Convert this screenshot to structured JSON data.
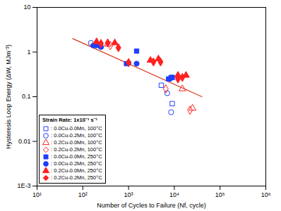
{
  "chart_data": {
    "type": "scatter",
    "x_label": "Number of Cycles to Failure (Nf, cycle)",
    "y_label": "Hysteresis Loop Energy (ΔW, MJm⁻³)",
    "log": true,
    "grid": false,
    "legend": "lower left",
    "legend_title": "Strain Rate: 1x10⁻³ s⁻¹",
    "xlim": [
      10,
      1000000
    ],
    "xticks": [
      {
        "value": 10,
        "label": "10¹"
      },
      {
        "value": 100,
        "label": "10²"
      },
      {
        "value": 1000,
        "label": "10³"
      },
      {
        "value": 10000,
        "label": "10⁴"
      },
      {
        "value": 100000,
        "label": "10⁵"
      },
      {
        "value": 1000000,
        "label": "10⁶"
      }
    ],
    "ylim": [
      0.001,
      10
    ],
    "yticks": [
      {
        "value": 0.001,
        "label": "1E-3"
      },
      0.01,
      0.1,
      1,
      10
    ],
    "series": [
      {
        "name": ": 0.0Cu-0.0Mn, 100°C",
        "color": "#1f3fff",
        "marker": "square-open",
        "x": [
          5200,
          8500,
          9000
        ],
        "values": [
          0.18,
          0.27,
          0.07
        ]
      },
      {
        "name": ": 0.0Cu-0.2Mn, 100°C",
        "color": "#1f3fff",
        "marker": "circle-open",
        "x": [
          150,
          7000,
          8500
        ],
        "values": [
          1.6,
          0.12,
          0.045
        ]
      },
      {
        "name": ": 0.2Cu-0.0Mn, 100°C",
        "color": "#ff2020",
        "marker": "triangle-open",
        "x": [
          350,
          15000,
          25000
        ],
        "values": [
          1.5,
          0.15,
          0.055
        ]
      },
      {
        "name": ": 0.2Cu-0.2Mn, 100°C",
        "color": "#ff2020",
        "marker": "diamond-open",
        "x": [
          400,
          6500,
          22000
        ],
        "values": [
          1.4,
          0.15,
          0.05
        ]
      },
      {
        "name": ": 0.0Cu-0.0Mn, 250°C",
        "color": "#1f3fff",
        "marker": "square-filled",
        "x": [
          200,
          900,
          1500,
          7500,
          9000
        ],
        "values": [
          1.4,
          0.55,
          1.05,
          0.25,
          0.27
        ]
      },
      {
        "name": ": 0.0Cu-0.2Mn, 250°C",
        "color": "#1f3fff",
        "marker": "circle-filled",
        "x": [
          170,
          250,
          1000,
          1500,
          8000
        ],
        "values": [
          1.4,
          1.3,
          0.57,
          0.55,
          0.25
        ]
      },
      {
        "name": ": 0.2Cu-0.0Mn, 250°C",
        "color": "#ff2020",
        "marker": "triangle-filled",
        "x": [
          200,
          500,
          3000,
          4500,
          12000,
          18000
        ],
        "values": [
          1.7,
          1.6,
          0.65,
          0.7,
          0.3,
          0.3
        ]
      },
      {
        "name": ": 0.2Cu-0.2Mn, 250°C",
        "color": "#ff2020",
        "marker": "diamond-filled",
        "x": [
          250,
          350,
          600,
          1000,
          3500,
          5000,
          12000,
          15000
        ],
        "values": [
          1.55,
          1.6,
          1.25,
          0.58,
          0.6,
          0.6,
          0.25,
          0.27
        ]
      },
      {
        "type": "line",
        "color": "#d9381e",
        "x": [
          60,
          40000
        ],
        "values": [
          2.0,
          0.1
        ]
      }
    ]
  }
}
